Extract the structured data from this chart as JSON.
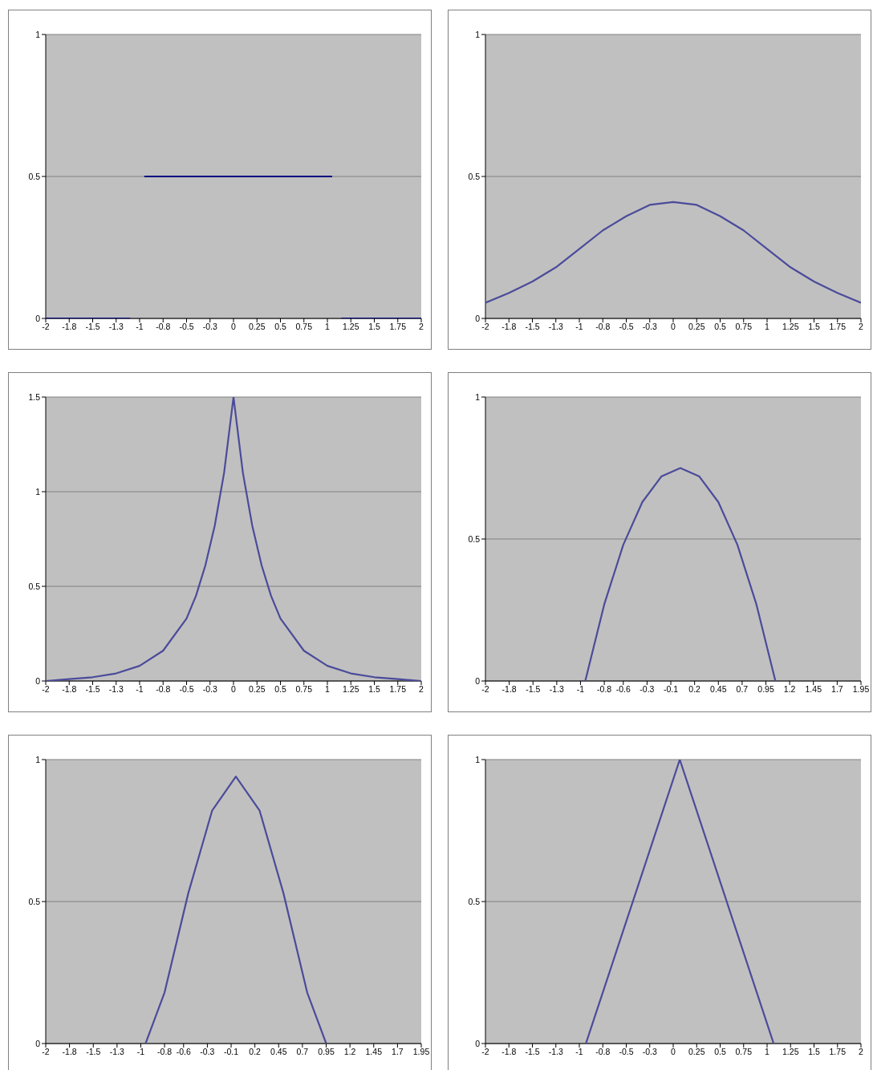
{
  "chart_data": [
    {
      "type": "line",
      "color": "#000080",
      "x": [
        -2,
        -1.1,
        -1.05,
        -0.95,
        1.05,
        1.1,
        1.15,
        2
      ],
      "values": [
        0,
        0,
        null,
        0.5,
        0.5,
        null,
        0,
        0
      ],
      "xlim": [
        -2,
        2
      ],
      "xticks": [
        -2,
        {
          "value": -1.75,
          "label": "-1.8"
        },
        -1.5,
        {
          "value": -1.25,
          "label": "-1.3"
        },
        -1,
        {
          "value": -0.75,
          "label": "-0.8"
        },
        -0.5,
        {
          "value": -0.25,
          "label": "-0.3"
        },
        0,
        0.25,
        0.5,
        0.75,
        1,
        1.25,
        1.5,
        1.75,
        2
      ],
      "ylim": [
        0,
        1
      ],
      "yticks": [
        0,
        0.5,
        1
      ],
      "grid": "y"
    },
    {
      "type": "line",
      "color": "#4b4b9b",
      "x": [
        -2,
        -1.75,
        -1.5,
        -1.25,
        -1,
        -0.75,
        -0.5,
        -0.25,
        0,
        0.25,
        0.5,
        0.75,
        1,
        1.25,
        1.5,
        1.75,
        2
      ],
      "values": [
        0.055,
        0.09,
        0.13,
        0.18,
        0.245,
        0.31,
        0.36,
        0.4,
        0.41,
        0.4,
        0.36,
        0.31,
        0.245,
        0.18,
        0.13,
        0.09,
        0.055
      ],
      "xlim": [
        -2,
        2
      ],
      "xticks": [
        -2,
        {
          "value": -1.75,
          "label": "-1.8"
        },
        -1.5,
        {
          "value": -1.25,
          "label": "-1.3"
        },
        -1,
        {
          "value": -0.75,
          "label": "-0.8"
        },
        -0.5,
        {
          "value": -0.25,
          "label": "-0.3"
        },
        0,
        0.25,
        0.5,
        0.75,
        1,
        1.25,
        1.5,
        1.75,
        2
      ],
      "ylim": [
        0,
        1
      ],
      "yticks": [
        0,
        0.5,
        1
      ],
      "grid": "y"
    },
    {
      "type": "line",
      "color": "#4b4b9b",
      "x": [
        -2,
        -1.75,
        -1.5,
        -1.25,
        -1,
        -0.75,
        -0.5,
        -0.4,
        -0.3,
        -0.2,
        -0.1,
        0,
        0.1,
        0.2,
        0.3,
        0.4,
        0.5,
        0.75,
        1,
        1.25,
        1.5,
        1.75,
        2
      ],
      "values": [
        0,
        0.01,
        0.02,
        0.04,
        0.08,
        0.16,
        0.33,
        0.45,
        0.61,
        0.82,
        1.1,
        1.5,
        1.1,
        0.82,
        0.61,
        0.45,
        0.33,
        0.16,
        0.08,
        0.04,
        0.02,
        0.01,
        0
      ],
      "xlim": [
        -2,
        2
      ],
      "xticks": [
        -2,
        {
          "value": -1.75,
          "label": "-1.8"
        },
        -1.5,
        {
          "value": -1.25,
          "label": "-1.3"
        },
        -1,
        {
          "value": -0.75,
          "label": "-0.8"
        },
        -0.5,
        {
          "value": -0.25,
          "label": "-0.3"
        },
        0,
        0.25,
        0.5,
        0.75,
        1,
        1.25,
        1.5,
        1.75,
        2
      ],
      "ylim": [
        0,
        1.5
      ],
      "yticks": [
        0,
        0.5,
        1,
        1.5
      ],
      "grid": "y"
    },
    {
      "type": "line",
      "color": "#4b4b9b",
      "x": [
        -0.95,
        -0.75,
        -0.55,
        -0.35,
        -0.15,
        0.05,
        0.25,
        0.45,
        0.65,
        0.85,
        1.05
      ],
      "values": [
        0,
        0.27,
        0.48,
        0.63,
        0.72,
        0.75,
        0.72,
        0.63,
        0.48,
        0.27,
        0
      ],
      "xlim": [
        -2,
        1.95
      ],
      "xticks": [
        -2,
        {
          "value": -1.75,
          "label": "-1.8"
        },
        -1.5,
        {
          "value": -1.25,
          "label": "-1.3"
        },
        -1,
        {
          "value": -0.75,
          "label": "-0.8"
        },
        {
          "value": -0.55,
          "label": "-0.6"
        },
        -0.3,
        {
          "value": -0.05,
          "label": "-0.1"
        },
        0.2,
        0.45,
        0.7,
        0.95,
        1.2,
        1.45,
        1.7,
        1.95
      ],
      "ylim": [
        0,
        1
      ],
      "yticks": [
        0,
        0.5,
        1
      ],
      "grid": "y"
    },
    {
      "type": "line",
      "color": "#4b4b9b",
      "x": [
        -0.95,
        -0.75,
        -0.5,
        -0.25,
        0,
        0.25,
        0.5,
        0.75,
        0.95
      ],
      "values": [
        0,
        0.18,
        0.53,
        0.82,
        0.94,
        0.82,
        0.53,
        0.18,
        0
      ],
      "xlim": [
        -2,
        1.95
      ],
      "xticks": [
        -2,
        {
          "value": -1.75,
          "label": "-1.8"
        },
        -1.5,
        {
          "value": -1.25,
          "label": "-1.3"
        },
        -1,
        {
          "value": -0.75,
          "label": "-0.8"
        },
        {
          "value": -0.55,
          "label": "-0.6"
        },
        -0.3,
        {
          "value": -0.05,
          "label": "-0.1"
        },
        0.2,
        0.45,
        0.7,
        0.95,
        1.2,
        1.45,
        1.7,
        1.95
      ],
      "ylim": [
        0,
        1
      ],
      "yticks": [
        0,
        0.5,
        1
      ],
      "grid": "y"
    },
    {
      "type": "line",
      "color": "#4b4b9b",
      "x": [
        -0.93,
        0.07,
        1.07
      ],
      "values": [
        0,
        1,
        0
      ],
      "xlim": [
        -2,
        2
      ],
      "xticks": [
        -2,
        {
          "value": -1.75,
          "label": "-1.8"
        },
        -1.5,
        {
          "value": -1.25,
          "label": "-1.3"
        },
        -1,
        {
          "value": -0.75,
          "label": "-0.8"
        },
        -0.5,
        {
          "value": -0.25,
          "label": "-0.3"
        },
        0,
        0.25,
        0.5,
        0.75,
        1,
        1.25,
        1.5,
        1.75,
        2
      ],
      "ylim": [
        0,
        1
      ],
      "yticks": [
        0,
        0.5,
        1
      ],
      "grid": "y"
    }
  ]
}
